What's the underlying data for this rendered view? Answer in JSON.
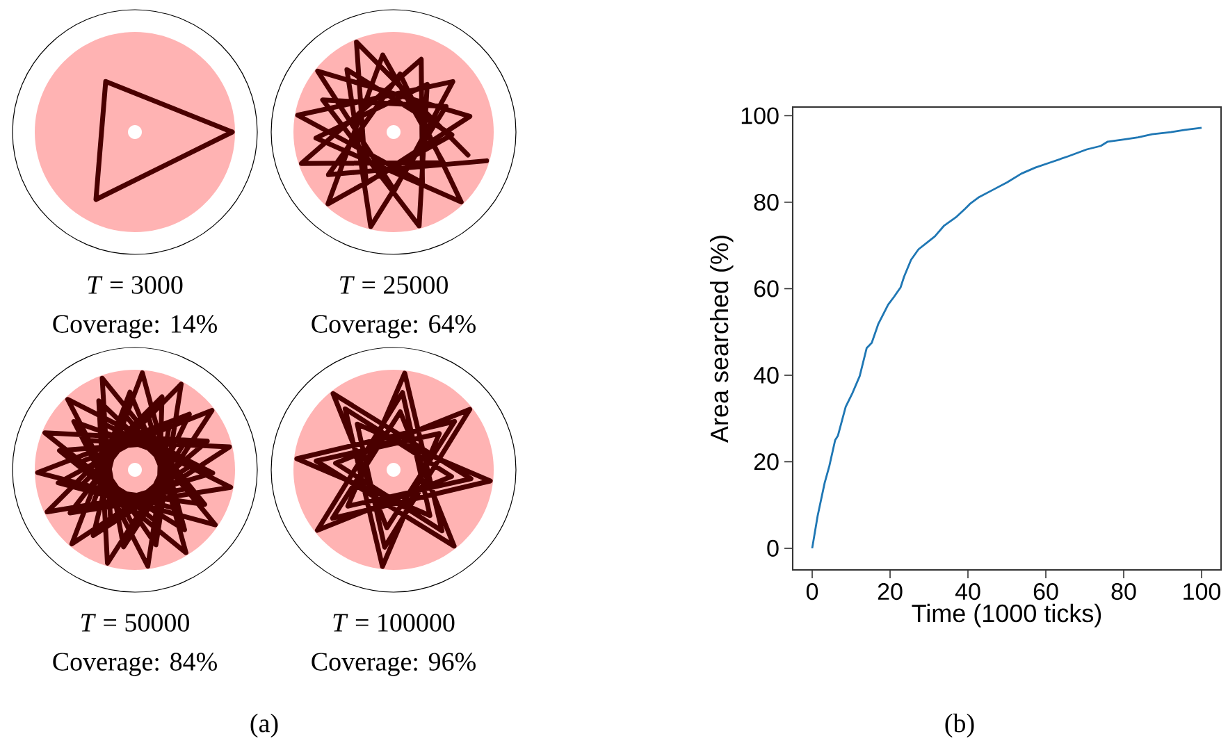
{
  "chart_data": [
    {
      "type": "other",
      "annotations": [
        "*T* = 3000",
        "Coverage: 14%",
        "*T* = 25000",
        "Coverage: 64%",
        "*T* = 50000",
        "Coverage: 84%",
        "*T* = 100000",
        "Coverage: 96%",
        "(a)"
      ]
    },
    {
      "type": "line",
      "xlabel": "Time (1000 ticks)",
      "ylabel": "Area searched (%)",
      "annotations": [
        "(b)"
      ],
      "xlim": [
        -5,
        105
      ],
      "ylim": [
        -5,
        102
      ],
      "xticks": [
        0,
        20,
        40,
        60,
        80,
        100
      ],
      "yticks": [
        0,
        20,
        40,
        60,
        80,
        100
      ],
      "series": [
        {
          "color": "#1f77b4",
          "x": [
            0,
            1.4,
            3.2,
            4.4,
            5.9,
            6.6,
            8.6,
            10.4,
            12.2,
            14.0,
            15.3,
            17.0,
            19.5,
            21.0,
            22.7,
            23.6,
            25.4,
            27.3,
            29.7,
            31.5,
            33.9,
            36.9,
            39.3,
            40.5,
            42.9,
            46.5,
            50.1,
            53.7,
            57.3,
            60.9,
            65.7,
            70.5,
            74.1,
            75.9,
            80.1,
            83.7,
            87.3,
            92.1,
            95.7,
            100
          ],
          "values": [
            0,
            7.5,
            15.1,
            19,
            25,
            26,
            32.7,
            36,
            39.8,
            46.3,
            47.5,
            51.9,
            56.3,
            58.1,
            60.3,
            62.8,
            66.7,
            69.1,
            70.8,
            72.1,
            74.6,
            76.5,
            78.5,
            79.6,
            81.2,
            82.9,
            84.6,
            86.6,
            88.0,
            89.1,
            90.6,
            92.2,
            93.0,
            94.0,
            94.5,
            95.0,
            95.7,
            96.2,
            96.7,
            97.2
          ]
        }
      ]
    }
  ]
}
